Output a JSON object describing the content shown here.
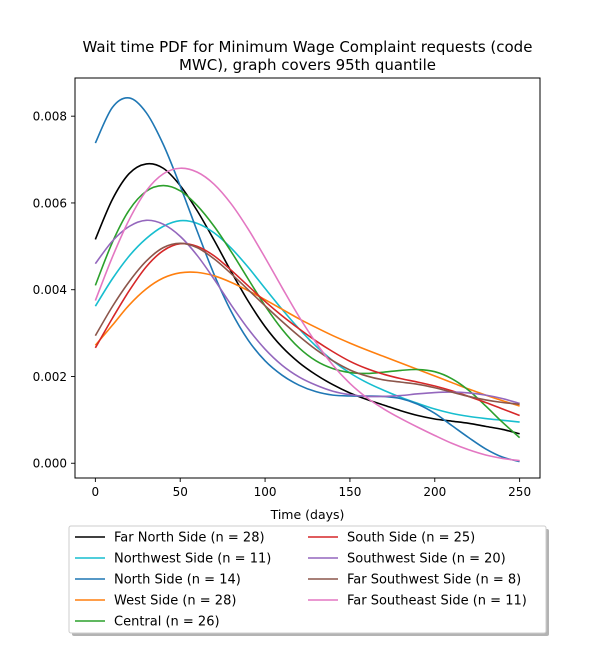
{
  "chart_data": {
    "type": "line",
    "title_lines": [
      "Wait time PDF for Minimum Wage Complaint  requests (code",
      "MWC), graph covers 95th quantile"
    ],
    "xlabel": "Time (days)",
    "ylabel": "",
    "xlim": [
      -12,
      262
    ],
    "ylim": [
      -0.00034,
      0.00888
    ],
    "x_ticks": [
      0,
      50,
      100,
      150,
      200,
      250
    ],
    "x_tick_labels": [
      "0",
      "50",
      "100",
      "150",
      "200",
      "250"
    ],
    "y_ticks": [
      0.0,
      0.002,
      0.004,
      0.006,
      0.008
    ],
    "y_tick_labels": [
      "0.000",
      "0.002",
      "0.004",
      "0.006",
      "0.008"
    ],
    "grid": false,
    "legend_position": "below",
    "x": [
      0,
      10,
      20,
      30,
      40,
      50,
      60,
      70,
      80,
      90,
      100,
      110,
      120,
      130,
      140,
      150,
      160,
      170,
      180,
      190,
      200,
      210,
      220,
      230,
      240,
      250
    ],
    "series": [
      {
        "name": "Far North Side (n = 28)",
        "color": "#000000",
        "values": [
          0.00516,
          0.00608,
          0.00668,
          0.0069,
          0.0068,
          0.0064,
          0.00582,
          0.00514,
          0.00442,
          0.00374,
          0.00315,
          0.00268,
          0.00232,
          0.00204,
          0.00181,
          0.00162,
          0.00147,
          0.00134,
          0.00121,
          0.0011,
          0.00102,
          0.00097,
          0.00092,
          0.00085,
          0.00078,
          0.00068
        ]
      },
      {
        "name": "Northwest Side (n = 11)",
        "color": "#17becf",
        "values": [
          0.00362,
          0.00425,
          0.00478,
          0.00518,
          0.00546,
          0.00559,
          0.00553,
          0.00531,
          0.00496,
          0.00452,
          0.00403,
          0.00355,
          0.0031,
          0.0027,
          0.00236,
          0.00208,
          0.00186,
          0.00168,
          0.00152,
          0.00138,
          0.00125,
          0.00115,
          0.00108,
          0.00103,
          0.00099,
          0.00095
        ]
      },
      {
        "name": "North Side (n = 14)",
        "color": "#1f77b4",
        "values": [
          0.00738,
          0.0082,
          0.00842,
          0.00808,
          0.00735,
          0.00639,
          0.00535,
          0.00435,
          0.0035,
          0.00284,
          0.00236,
          0.00203,
          0.0018,
          0.00165,
          0.00157,
          0.00155,
          0.00155,
          0.00154,
          0.00149,
          0.00136,
          0.00115,
          0.00087,
          0.00059,
          0.00033,
          0.00014,
          4e-05
        ]
      },
      {
        "name": "West Side (n = 28)",
        "color": "#ff7f0e",
        "values": [
          0.00272,
          0.00318,
          0.00365,
          0.00402,
          0.00427,
          0.00439,
          0.0044,
          0.00432,
          0.00417,
          0.00398,
          0.00377,
          0.00355,
          0.00333,
          0.00313,
          0.00294,
          0.00277,
          0.00261,
          0.00246,
          0.00231,
          0.00216,
          0.00201,
          0.00186,
          0.00171,
          0.00157,
          0.00144,
          0.00132
        ]
      },
      {
        "name": "Central (n = 26)",
        "color": "#2ca02c",
        "values": [
          0.0041,
          0.00509,
          0.00584,
          0.00627,
          0.0064,
          0.00628,
          0.00594,
          0.00546,
          0.00488,
          0.00425,
          0.00363,
          0.00309,
          0.00266,
          0.00236,
          0.00218,
          0.00209,
          0.00207,
          0.0021,
          0.00214,
          0.00216,
          0.00211,
          0.00195,
          0.00168,
          0.00132,
          0.00094,
          0.00059
        ]
      },
      {
        "name": "South Side (n = 25)",
        "color": "#d62728",
        "values": [
          0.00266,
          0.00334,
          0.00398,
          0.00453,
          0.0049,
          0.00506,
          0.005,
          0.00478,
          0.00445,
          0.00409,
          0.00373,
          0.0034,
          0.0031,
          0.00282,
          0.00257,
          0.00235,
          0.00218,
          0.00205,
          0.00195,
          0.00187,
          0.00178,
          0.00167,
          0.00154,
          0.0014,
          0.00125,
          0.0011
        ]
      },
      {
        "name": "Southwest Side (n = 20)",
        "color": "#9467bd",
        "values": [
          0.0046,
          0.00512,
          0.00546,
          0.0056,
          0.00551,
          0.00523,
          0.00479,
          0.00424,
          0.00365,
          0.0031,
          0.00263,
          0.00226,
          0.00199,
          0.0018,
          0.00166,
          0.00158,
          0.00154,
          0.00154,
          0.00156,
          0.0016,
          0.00163,
          0.00164,
          0.00162,
          0.00157,
          0.00149,
          0.00138
        ]
      },
      {
        "name": "Far Southwest Side (n = 8)",
        "color": "#8c564b",
        "values": [
          0.00294,
          0.00361,
          0.00419,
          0.00466,
          0.00497,
          0.00507,
          0.00497,
          0.00471,
          0.00437,
          0.004,
          0.00363,
          0.00327,
          0.00293,
          0.00262,
          0.00236,
          0.00215,
          0.00201,
          0.00192,
          0.00187,
          0.00182,
          0.00174,
          0.00164,
          0.00154,
          0.00146,
          0.0014,
          0.00136
        ]
      },
      {
        "name": "Far Southeast Side (n = 11)",
        "color": "#e377c2",
        "values": [
          0.00375,
          0.00475,
          0.00562,
          0.00628,
          0.00667,
          0.0068,
          0.00671,
          0.00643,
          0.00598,
          0.0054,
          0.00474,
          0.00405,
          0.00338,
          0.00278,
          0.00226,
          0.00184,
          0.00151,
          0.00125,
          0.00103,
          0.00083,
          0.00064,
          0.00046,
          0.00031,
          0.00019,
          0.00011,
          6e-05
        ]
      }
    ]
  }
}
